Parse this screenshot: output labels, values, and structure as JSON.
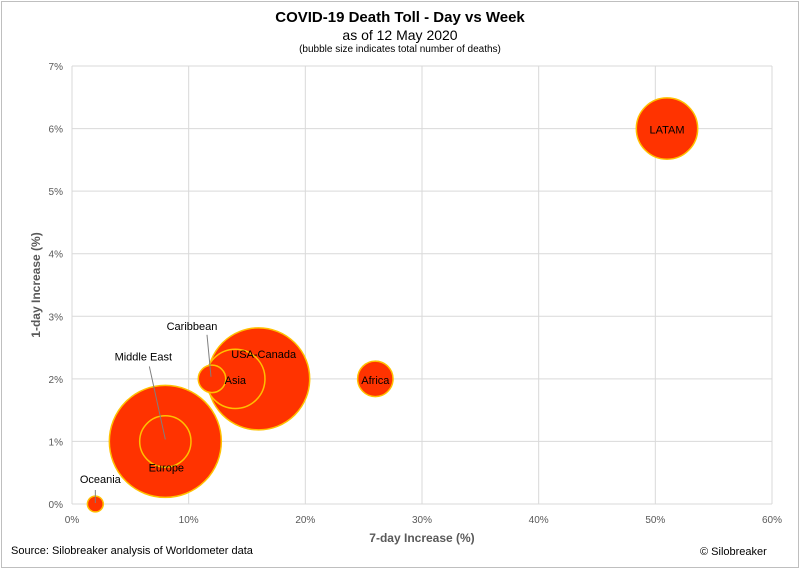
{
  "chart_data": {
    "type": "bubble",
    "title": "COVID-19 Death Toll - Day vs Week",
    "subtitle": "as of 12 May 2020",
    "note": "(bubble size indicates total number of deaths)",
    "xlabel": "7-day Increase (%)",
    "ylabel": "1-day Increase (%)",
    "xlim": [
      0,
      60
    ],
    "ylim": [
      0,
      7
    ],
    "xticks": [
      0,
      10,
      20,
      30,
      40,
      50,
      60
    ],
    "yticks": [
      0,
      1,
      2,
      3,
      4,
      5,
      6,
      7
    ],
    "xtick_labels": [
      "0%",
      "10%",
      "20%",
      "30%",
      "40%",
      "50%",
      "60%"
    ],
    "ytick_labels": [
      "0%",
      "1%",
      "2%",
      "3%",
      "4%",
      "5%",
      "6%",
      "7%"
    ],
    "grid": true,
    "colors": {
      "fill": "#ff3300",
      "outline": "#ffc000",
      "grid": "#d9d9d9"
    },
    "points": [
      {
        "label": "LATAM",
        "x": 51,
        "y": 6,
        "relative_size": 0.3
      },
      {
        "label": "Africa",
        "x": 26,
        "y": 2,
        "relative_size": 0.1
      },
      {
        "label": "USA-Canada",
        "x": 16,
        "y": 2,
        "relative_size": 0.83
      },
      {
        "label": "Asia",
        "x": 14,
        "y": 2,
        "relative_size": 0.28
      },
      {
        "label": "Caribbean",
        "x": 12,
        "y": 2,
        "relative_size": 0.06
      },
      {
        "label": "Europe",
        "x": 8,
        "y": 1,
        "relative_size": 1.0
      },
      {
        "label": "Middle East",
        "x": 8,
        "y": 1,
        "relative_size": 0.21
      },
      {
        "label": "Oceania",
        "x": 2,
        "y": 0,
        "relative_size": 0.02
      }
    ]
  },
  "footer": {
    "source": "Source: Silobreaker analysis of Worldometer data",
    "copyright": "© Silobreaker"
  }
}
